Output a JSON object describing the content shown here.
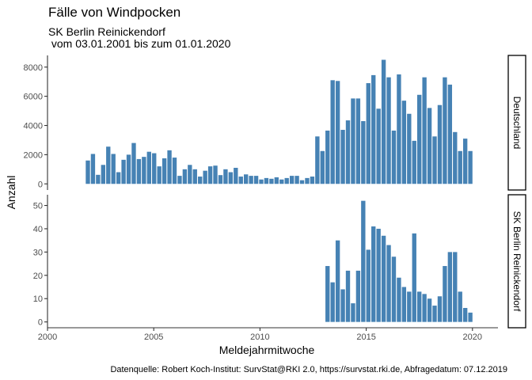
{
  "chart_data": {
    "type": "bar",
    "title": "Fälle von Windpocken",
    "subtitle_line1": "SK Berlin Reinickendorf",
    "subtitle_line2": " vom 03.01.2001 bis zum 01.01.2020",
    "xlabel": "Meldejahrmitwoche",
    "ylabel": "Anzahl",
    "caption": "Datenquelle: Robert Koch-Institut: SurvStat@RKI 2.0, https://survstat.rki.de, Abfragedatum: 07.12.2019",
    "xlim": [
      2000,
      2021.2
    ],
    "x_ticks": [
      2000,
      2005,
      2010,
      2015,
      2020
    ],
    "x_tick_labels": [
      "2000",
      "2005",
      "2010",
      "2015",
      "2020"
    ],
    "bar_color": "#4682B4",
    "bar_width_years": 0.2,
    "grid": false,
    "facets": [
      {
        "strip_label": "Deutschland",
        "ylim": [
          -420,
          8800
        ],
        "y_ticks": [
          0,
          2000,
          4000,
          6000,
          8000
        ],
        "y_tick_labels": [
          "0",
          "2000",
          "4000",
          "6000",
          "8000"
        ],
        "x": [
          2001.9,
          2002.14,
          2002.38,
          2002.62,
          2002.86,
          2003.1,
          2003.34,
          2003.58,
          2003.82,
          2004.06,
          2004.3,
          2004.54,
          2004.78,
          2005.02,
          2005.26,
          2005.5,
          2005.74,
          2005.98,
          2006.22,
          2006.46,
          2006.7,
          2006.94,
          2007.18,
          2007.42,
          2007.66,
          2007.9,
          2008.14,
          2008.38,
          2008.62,
          2008.86,
          2009.1,
          2009.34,
          2009.58,
          2009.82,
          2010.06,
          2010.3,
          2010.54,
          2010.78,
          2011.02,
          2011.26,
          2011.5,
          2011.74,
          2011.98,
          2012.22,
          2012.46,
          2012.7,
          2012.94,
          2013.18,
          2013.42,
          2013.66,
          2013.9,
          2014.14,
          2014.38,
          2014.62,
          2014.86,
          2015.1,
          2015.34,
          2015.58,
          2015.82,
          2016.06,
          2016.3,
          2016.54,
          2016.78,
          2017.02,
          2017.26,
          2017.5,
          2017.74,
          2017.98,
          2018.22,
          2018.46,
          2018.7,
          2018.94,
          2019.18,
          2019.42,
          2019.66,
          2019.9
        ],
        "values": [
          1600,
          2050,
          620,
          1300,
          2550,
          2050,
          800,
          1650,
          2000,
          2800,
          1700,
          1850,
          2200,
          2100,
          1200,
          1750,
          2300,
          1800,
          550,
          1000,
          1300,
          1000,
          500,
          900,
          1200,
          1250,
          600,
          1000,
          800,
          1100,
          500,
          650,
          550,
          550,
          300,
          400,
          350,
          450,
          300,
          400,
          550,
          550,
          250,
          400,
          500,
          3250,
          2250,
          3650,
          7100,
          7050,
          3700,
          4350,
          5850,
          5850,
          4300,
          6900,
          7450,
          5150,
          8500,
          7300,
          3650,
          7500,
          5700,
          4800,
          2950,
          6100,
          7300,
          5200,
          3250,
          5400,
          7300,
          6800,
          3550,
          2250,
          3100,
          2250
        ]
      },
      {
        "strip_label": "SK Berlin Reinickendorf",
        "ylim": [
          -2.5,
          54.6
        ],
        "y_ticks": [
          0,
          10,
          20,
          30,
          40,
          50
        ],
        "y_tick_labels": [
          "0",
          "10",
          "20",
          "30",
          "40",
          "50"
        ],
        "x": [
          2013.18,
          2013.42,
          2013.66,
          2013.9,
          2014.14,
          2014.38,
          2014.62,
          2014.86,
          2015.1,
          2015.34,
          2015.58,
          2015.82,
          2016.06,
          2016.3,
          2016.54,
          2016.78,
          2017.02,
          2017.26,
          2017.5,
          2017.74,
          2017.98,
          2018.22,
          2018.46,
          2018.7,
          2018.94,
          2019.18,
          2019.42,
          2019.66,
          2019.9
        ],
        "values": [
          24,
          17,
          35,
          14,
          22,
          8,
          22,
          52,
          31,
          41,
          40,
          37,
          33,
          28,
          19,
          15,
          13,
          38,
          13,
          12,
          10,
          7,
          11,
          24,
          30,
          30,
          13,
          6,
          4
        ]
      }
    ]
  }
}
